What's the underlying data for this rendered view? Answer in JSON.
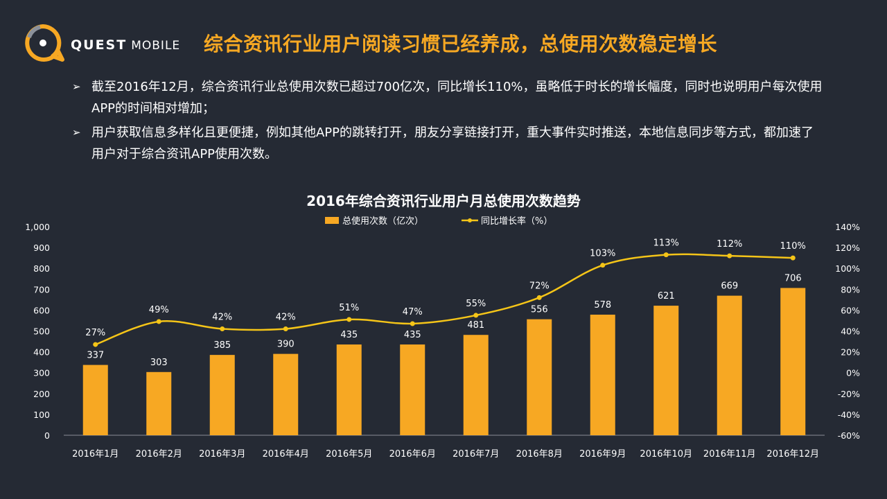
{
  "header": {
    "logo_bold": "QUEST",
    "logo_light": "MOBILE",
    "title": "综合资讯行业用户阅读习惯已经养成，总使用次数稳定增长"
  },
  "bullets": [
    "截至2016年12月，综合资讯行业总使用次数已超过700亿次，同比增长110%，虽略低于时长的增长幅度，同时也说明用户每次使用APP的时间相对增加；",
    "用户获取信息多样化且更便捷，例如其他APP的跳转打开，朋友分享链接打开，重大事件实时推送，本地信息同步等方式，都加速了用户对于综合资讯APP使用次数。"
  ],
  "colors": {
    "accent": "#f7a823",
    "line": "#f5c518",
    "background": "#252a34"
  },
  "chart_data": {
    "type": "bar+line",
    "title": "2016年综合资讯行业用户月总使用次数趋势",
    "categories": [
      "2016年1月",
      "2016年2月",
      "2016年3月",
      "2016年4月",
      "2016年5月",
      "2016年6月",
      "2016年7月",
      "2016年8月",
      "2016年9月",
      "2016年10月",
      "2016年11月",
      "2016年12月"
    ],
    "series": [
      {
        "name": "总使用次数（亿次）",
        "type": "bar",
        "axis": "left",
        "values": [
          337,
          303,
          385,
          390,
          435,
          435,
          481,
          556,
          578,
          621,
          669,
          706
        ],
        "labels": [
          "337",
          "303",
          "385",
          "390",
          "435",
          "435",
          "481",
          "556",
          "578",
          "621",
          "669",
          "706"
        ]
      },
      {
        "name": "同比增长率（%）",
        "type": "line",
        "axis": "right",
        "values": [
          27,
          49,
          42,
          42,
          51,
          47,
          55,
          72,
          103,
          113,
          112,
          110
        ],
        "labels": [
          "27%",
          "49%",
          "42%",
          "42%",
          "51%",
          "47%",
          "55%",
          "72%",
          "103%",
          "113%",
          "112%",
          "110%"
        ]
      }
    ],
    "left_axis": {
      "min": 0,
      "max": 1000,
      "step": 100,
      "ticks": [
        "0",
        "100",
        "200",
        "300",
        "400",
        "500",
        "600",
        "700",
        "800",
        "900",
        "1,000"
      ]
    },
    "right_axis": {
      "min": -60,
      "max": 140,
      "step": 20,
      "ticks": [
        "-60%",
        "-40%",
        "-20%",
        "0%",
        "20%",
        "40%",
        "60%",
        "80%",
        "100%",
        "120%",
        "140%"
      ]
    },
    "legend_position": "top-center",
    "grid": false
  }
}
